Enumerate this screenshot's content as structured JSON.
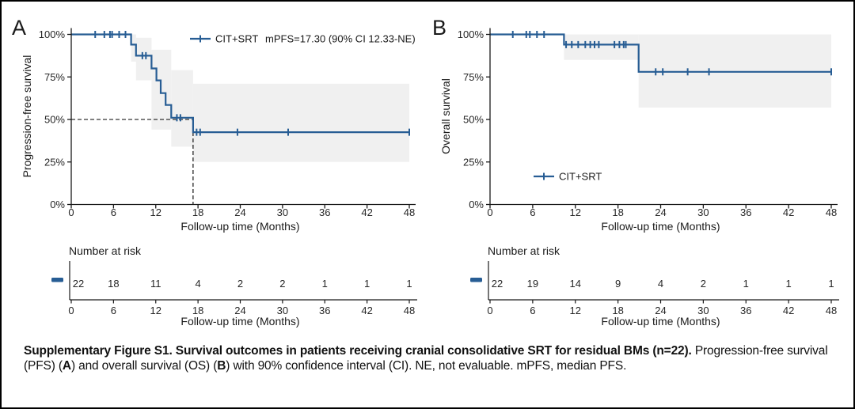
{
  "colors": {
    "curve_blue": "#275d94",
    "ci_gray": "#f0f0f0",
    "axis_black": "#1a1a1a",
    "tick_text": "#262626"
  },
  "chart_data": [
    {
      "type": "line",
      "subtype": "kaplan-meier-step",
      "panel_label": "A",
      "ylabel": "Progression-free survival",
      "xlabel": "Follow-up time (Months)",
      "xlim": [
        0,
        48
      ],
      "ylim": [
        0,
        100
      ],
      "xticks": [
        0,
        6,
        12,
        18,
        24,
        30,
        36,
        42,
        48
      ],
      "yticks": [
        0,
        25,
        50,
        75,
        100
      ],
      "ytick_labels": [
        "0%",
        "25%",
        "50%",
        "75%",
        "100%"
      ],
      "grid": false,
      "legend": {
        "position": "top-right-inside",
        "series": "CIT+SRT",
        "annotation": "mPFS=17.30 (90% CI 12.33-NE)"
      },
      "steps": [
        [
          0,
          100
        ],
        [
          8.5,
          100
        ],
        [
          8.5,
          94
        ],
        [
          9.2,
          94
        ],
        [
          9.2,
          87.5
        ],
        [
          11.4,
          87.5
        ],
        [
          11.4,
          80
        ],
        [
          12.1,
          80
        ],
        [
          12.1,
          73
        ],
        [
          12.7,
          73
        ],
        [
          12.7,
          65.5
        ],
        [
          13.4,
          65.5
        ],
        [
          13.4,
          58.5
        ],
        [
          14.2,
          58.5
        ],
        [
          14.2,
          51
        ],
        [
          17.3,
          51
        ],
        [
          17.3,
          42.5
        ],
        [
          48,
          42.5
        ]
      ],
      "censor_marks": [
        [
          3.4,
          100
        ],
        [
          4.7,
          100
        ],
        [
          5.5,
          100
        ],
        [
          5.8,
          100
        ],
        [
          6.8,
          100
        ],
        [
          7.7,
          100
        ],
        [
          10.1,
          87.5
        ],
        [
          10.6,
          87.5
        ],
        [
          15.0,
          51
        ],
        [
          15.5,
          51
        ],
        [
          17.8,
          42.5
        ],
        [
          18.3,
          42.5
        ],
        [
          23.6,
          42.5
        ],
        [
          30.8,
          42.5
        ],
        [
          48,
          42.5
        ]
      ],
      "ci_band": [
        [
          8.5,
          9.2,
          84,
          100
        ],
        [
          9.2,
          11.4,
          73,
          98
        ],
        [
          11.4,
          14.2,
          44,
          91
        ],
        [
          14.2,
          17.3,
          34,
          79
        ],
        [
          17.3,
          48,
          25,
          71
        ]
      ],
      "median_line": {
        "x": 17.3,
        "y": 50
      },
      "number_at_risk": {
        "title": "Number at risk",
        "times": [
          0,
          6,
          12,
          18,
          24,
          30,
          36,
          42,
          48
        ],
        "counts": [
          22,
          18,
          11,
          4,
          2,
          2,
          1,
          1,
          1
        ],
        "axis_label": "Follow-up time (Months)"
      }
    },
    {
      "type": "line",
      "subtype": "kaplan-meier-step",
      "panel_label": "B",
      "ylabel": "Overall survival",
      "xlabel": "Follow-up time (Months)",
      "xlim": [
        0,
        48
      ],
      "ylim": [
        0,
        100
      ],
      "xticks": [
        0,
        6,
        12,
        18,
        24,
        30,
        36,
        42,
        48
      ],
      "yticks": [
        0,
        25,
        50,
        75,
        100
      ],
      "ytick_labels": [
        "0%",
        "25%",
        "50%",
        "75%",
        "100%"
      ],
      "grid": false,
      "legend": {
        "position": "bottom-left-inside",
        "series": "CIT+SRT",
        "annotation": ""
      },
      "steps": [
        [
          0,
          100
        ],
        [
          10.4,
          100
        ],
        [
          10.4,
          94
        ],
        [
          20.9,
          94
        ],
        [
          20.9,
          78
        ],
        [
          48,
          78
        ]
      ],
      "censor_marks": [
        [
          3.2,
          100
        ],
        [
          5.1,
          100
        ],
        [
          5.6,
          100
        ],
        [
          6.6,
          100
        ],
        [
          7.6,
          100
        ],
        [
          10.7,
          94
        ],
        [
          11.5,
          94
        ],
        [
          12.4,
          94
        ],
        [
          13.4,
          94
        ],
        [
          14.1,
          94
        ],
        [
          14.7,
          94
        ],
        [
          15.3,
          94
        ],
        [
          17.5,
          94
        ],
        [
          18.2,
          94
        ],
        [
          18.8,
          94
        ],
        [
          19.1,
          94
        ],
        [
          23.3,
          78
        ],
        [
          24.3,
          78
        ],
        [
          27.8,
          78
        ],
        [
          30.8,
          78
        ],
        [
          48,
          78
        ]
      ],
      "ci_band": [
        [
          10.4,
          20.9,
          85,
          100
        ],
        [
          20.9,
          48,
          57,
          100
        ]
      ],
      "median_line": null,
      "number_at_risk": {
        "title": "Number at risk",
        "times": [
          0,
          6,
          12,
          18,
          24,
          30,
          36,
          42,
          48
        ],
        "counts": [
          22,
          19,
          14,
          9,
          4,
          2,
          1,
          1,
          1
        ],
        "axis_label": "Follow-up time (Months)"
      }
    }
  ],
  "caption": {
    "title_bold": "Supplementary Figure S1. Survival outcomes in patients receiving cranial consolidative SRT for residual BMs (n=22).",
    "body_pre_a": " Progression-free survival (PFS) (",
    "bold_a": "A",
    "body_mid": ") and overall survival (OS) (",
    "bold_b": "B",
    "body_post": ") with 90% confidence interval (CI). NE, not evaluable. mPFS, median PFS."
  }
}
